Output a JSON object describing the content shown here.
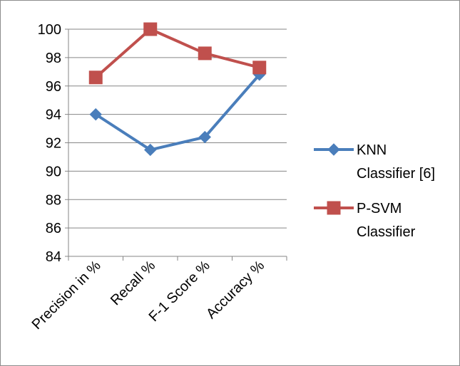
{
  "chart_data": {
    "type": "line",
    "categories": [
      "Precision in %",
      "Recall %",
      "F-1 Score %",
      "Accuracy %"
    ],
    "ylim": [
      84,
      100
    ],
    "yticks": [
      84,
      86,
      88,
      90,
      92,
      94,
      96,
      98,
      100
    ],
    "grid": true,
    "legend_position": "right",
    "series": [
      {
        "name": [
          "KNN",
          "Classifier [6]"
        ],
        "values": [
          94.0,
          91.5,
          92.4,
          96.8
        ],
        "color": "#4a7ebb",
        "marker": "diamond"
      },
      {
        "name": [
          "P-SVM",
          "Classifier"
        ],
        "values": [
          96.6,
          100.0,
          98.3,
          97.3
        ],
        "color": "#c0504d",
        "marker": "square"
      }
    ]
  }
}
